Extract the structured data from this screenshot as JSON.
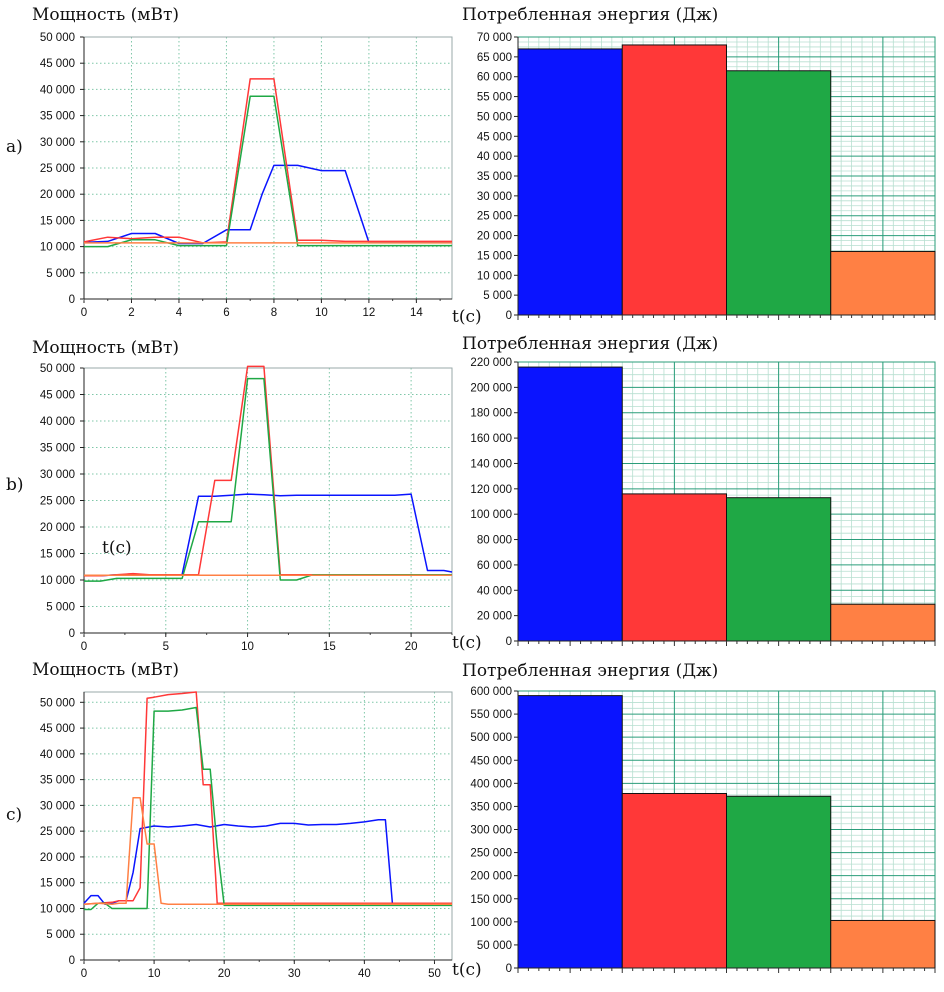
{
  "colors": {
    "blue": "#0a14ff",
    "red": "#ff3838",
    "green": "#1fa845",
    "orange": "#ff8044",
    "grid": "#2a9d7a"
  },
  "chart_data": [
    {
      "id": "a-power",
      "row_label": "a)",
      "type": "line",
      "title": "Мощность (мВт)",
      "xlabel": "",
      "xlim": [
        0,
        15.5
      ],
      "ylim": [
        0,
        50000
      ],
      "xticks": [
        0,
        2,
        4,
        6,
        8,
        10,
        12,
        14
      ],
      "xtick_labels": [
        "0",
        "2",
        "4",
        "6",
        "8",
        "10",
        "12",
        "14"
      ],
      "yticks": [
        0,
        5000,
        10000,
        15000,
        20000,
        25000,
        30000,
        35000,
        40000,
        45000,
        50000
      ],
      "ytick_labels": [
        "0",
        "5 000",
        "10 000",
        "15 000",
        "20 000",
        "25 000",
        "30 000",
        "35 000",
        "40 000",
        "45 000",
        "50 000"
      ],
      "grid": true,
      "series": [
        {
          "color": "blue",
          "x": [
            0,
            1,
            2,
            3,
            4,
            5,
            6,
            7,
            7.5,
            8,
            9,
            10,
            11,
            12,
            13,
            14,
            15.5
          ],
          "y": [
            10800,
            11000,
            12500,
            12500,
            10600,
            10600,
            13200,
            13200,
            20000,
            25500,
            25500,
            24500,
            24500,
            10800,
            10800,
            10800,
            10800
          ]
        },
        {
          "color": "red",
          "x": [
            0,
            1,
            2,
            3,
            4,
            5,
            6,
            7,
            8,
            9,
            10,
            11,
            12,
            13,
            14,
            15.5
          ],
          "y": [
            10900,
            11800,
            11500,
            11800,
            11800,
            10700,
            10900,
            42000,
            42000,
            11200,
            11200,
            11000,
            11000,
            11000,
            11000,
            11000
          ]
        },
        {
          "color": "green",
          "x": [
            0,
            1,
            2,
            3,
            4,
            5,
            6,
            7,
            8,
            9,
            10,
            11,
            12,
            13,
            14,
            15.5
          ],
          "y": [
            10000,
            10000,
            11300,
            11300,
            10200,
            10200,
            10200,
            38700,
            38700,
            10200,
            10200,
            10200,
            10200,
            10200,
            10200,
            10200
          ]
        },
        {
          "color": "orange",
          "x": [
            0,
            15.5
          ],
          "y": [
            10700,
            10700
          ]
        }
      ]
    },
    {
      "id": "a-energy",
      "type": "bar",
      "title": "Потребленная энергия (Дж)",
      "xlabel": "t(c)",
      "ylim": [
        0,
        70000
      ],
      "yticks": [
        0,
        5000,
        10000,
        15000,
        20000,
        25000,
        30000,
        35000,
        40000,
        45000,
        50000,
        55000,
        60000,
        65000,
        70000
      ],
      "ytick_labels": [
        "0",
        "5 000",
        "10 000",
        "15 000",
        "20 000",
        "25 000",
        "30 000",
        "35 000",
        "40 000",
        "45 000",
        "50 000",
        "55 000",
        "60 000",
        "65 000",
        "70 000"
      ],
      "grid": true,
      "bars": [
        {
          "color": "blue",
          "value": 67000
        },
        {
          "color": "red",
          "value": 68000
        },
        {
          "color": "green",
          "value": 61500
        },
        {
          "color": "orange",
          "value": 16000
        }
      ]
    },
    {
      "id": "b-power",
      "row_label": "b)",
      "type": "line",
      "title": "Мощность (мВт)",
      "xlabel": "t(c)",
      "xlim": [
        0,
        22.5
      ],
      "ylim": [
        0,
        50000
      ],
      "xticks": [
        0,
        5,
        10,
        15,
        20
      ],
      "xtick_labels": [
        "0",
        "5",
        "10",
        "15",
        "20"
      ],
      "yticks": [
        0,
        5000,
        10000,
        15000,
        20000,
        25000,
        30000,
        35000,
        40000,
        45000,
        50000
      ],
      "ytick_labels": [
        "0",
        "5 000",
        "10 000",
        "15 000",
        "20 000",
        "25 000",
        "30 000",
        "35 000",
        "40 000",
        "45 000",
        "50 000"
      ],
      "grid": true,
      "series": [
        {
          "color": "blue",
          "x": [
            0,
            1,
            2,
            3,
            4,
            5,
            6,
            7,
            8,
            9,
            10,
            11,
            12,
            13,
            14,
            15,
            16,
            17,
            18,
            19,
            20,
            21,
            22,
            22.5
          ],
          "y": [
            10800,
            10800,
            11000,
            11000,
            11000,
            11000,
            11000,
            25800,
            25800,
            26000,
            26200,
            26100,
            25900,
            26000,
            26000,
            26000,
            26000,
            26000,
            26000,
            26000,
            26200,
            11800,
            11800,
            11500
          ]
        },
        {
          "color": "red",
          "x": [
            0,
            1,
            2,
            3,
            4,
            5,
            6,
            7,
            8,
            9,
            10,
            11,
            12,
            13,
            14,
            15,
            16,
            17,
            18,
            19,
            20,
            21,
            22,
            22.5
          ],
          "y": [
            10800,
            10800,
            11000,
            11200,
            11000,
            11000,
            11000,
            11000,
            28800,
            28800,
            50300,
            50300,
            11000,
            11000,
            11000,
            11000,
            11000,
            11000,
            11000,
            11000,
            11000,
            11000,
            11000,
            11000
          ]
        },
        {
          "color": "green",
          "x": [
            0,
            1,
            2,
            3,
            4,
            5,
            6,
            7,
            8,
            9,
            10,
            11,
            12,
            13,
            14,
            15,
            16,
            17,
            18,
            19,
            20,
            21,
            22,
            22.5
          ],
          "y": [
            9800,
            9800,
            10300,
            10300,
            10300,
            10300,
            10300,
            21000,
            21000,
            21000,
            48000,
            48000,
            10000,
            10000,
            11000,
            11000,
            11000,
            11000,
            11000,
            11000,
            11000,
            11000,
            11000,
            11000
          ]
        },
        {
          "color": "orange",
          "x": [
            0,
            22.5
          ],
          "y": [
            10900,
            10900
          ]
        }
      ]
    },
    {
      "id": "b-energy",
      "type": "bar",
      "title": "Потребленная энергия (Дж)",
      "xlabel": "t(c)",
      "ylim": [
        0,
        220000
      ],
      "yticks": [
        0,
        20000,
        40000,
        60000,
        80000,
        100000,
        120000,
        140000,
        160000,
        180000,
        200000,
        220000
      ],
      "ytick_labels": [
        "0",
        "20 000",
        "40 000",
        "60 000",
        "80 000",
        "100 000",
        "120 000",
        "140 000",
        "160 000",
        "180 000",
        "200 000",
        "220 000"
      ],
      "grid": true,
      "bars": [
        {
          "color": "blue",
          "value": 216000
        },
        {
          "color": "red",
          "value": 116000
        },
        {
          "color": "green",
          "value": 113000
        },
        {
          "color": "orange",
          "value": 29000
        }
      ]
    },
    {
      "id": "c-power",
      "row_label": "c)",
      "type": "line",
      "title": "Мощность (мВт)",
      "xlabel": "",
      "xlim": [
        0,
        52.5
      ],
      "ylim": [
        0,
        52000
      ],
      "xticks": [
        0,
        10,
        20,
        30,
        40,
        50
      ],
      "xtick_labels": [
        "0",
        "10",
        "20",
        "30",
        "40",
        "50"
      ],
      "yticks": [
        0,
        5000,
        10000,
        15000,
        20000,
        25000,
        30000,
        35000,
        40000,
        45000,
        50000
      ],
      "ytick_labels": [
        "0",
        "5 000",
        "10 000",
        "15 000",
        "20 000",
        "25 000",
        "30 000",
        "35 000",
        "40 000",
        "45 000",
        "50 000"
      ],
      "grid": true,
      "series": [
        {
          "color": "blue",
          "x": [
            0,
            1,
            2,
            3,
            4,
            5,
            6,
            7,
            8,
            10,
            12,
            14,
            16,
            18,
            20,
            22,
            24,
            26,
            28,
            30,
            32,
            34,
            36,
            38,
            40,
            42,
            43,
            44,
            46,
            48,
            50,
            52.5
          ],
          "y": [
            11000,
            12500,
            12500,
            10800,
            11000,
            11500,
            11500,
            17000,
            25500,
            26000,
            25800,
            26000,
            26300,
            25800,
            26300,
            26000,
            25800,
            26000,
            26500,
            26500,
            26200,
            26300,
            26300,
            26500,
            26800,
            27200,
            27200,
            11000,
            11000,
            11000,
            11000,
            11000
          ]
        },
        {
          "color": "red",
          "x": [
            0,
            2,
            4,
            5,
            6,
            7,
            8,
            9,
            10,
            12,
            14,
            16,
            17,
            18,
            19,
            20,
            22,
            30,
            40,
            50,
            52.5
          ],
          "y": [
            10800,
            11000,
            11200,
            11500,
            11500,
            11500,
            14000,
            50800,
            51000,
            51500,
            51700,
            52000,
            34000,
            34000,
            11000,
            11000,
            11000,
            11000,
            11000,
            11000,
            11000
          ]
        },
        {
          "color": "green",
          "x": [
            0,
            1,
            2,
            3,
            4,
            5,
            6,
            7,
            8,
            9,
            10,
            12,
            14,
            16,
            17,
            18,
            19,
            20,
            22,
            30,
            40,
            50,
            52.5
          ],
          "y": [
            9800,
            9800,
            11000,
            11000,
            10000,
            10000,
            10000,
            10000,
            10000,
            10000,
            48300,
            48300,
            48500,
            49000,
            37000,
            37000,
            22000,
            10600,
            10600,
            10600,
            10600,
            10600,
            10600
          ]
        },
        {
          "color": "orange",
          "x": [
            0,
            2,
            4,
            5,
            6,
            7,
            8,
            9,
            10,
            11,
            12,
            20,
            30,
            40,
            50,
            52.5
          ],
          "y": [
            10800,
            11000,
            10800,
            11000,
            11000,
            31500,
            31500,
            22500,
            22500,
            11000,
            10800,
            10800,
            10800,
            10800,
            10800,
            10800
          ]
        }
      ]
    },
    {
      "id": "c-energy",
      "type": "bar",
      "title": "Потребленная энергия (Дж)",
      "xlabel": "t(c)",
      "ylim": [
        0,
        600000
      ],
      "yticks": [
        0,
        50000,
        100000,
        150000,
        200000,
        250000,
        300000,
        350000,
        400000,
        450000,
        500000,
        550000,
        600000
      ],
      "ytick_labels": [
        "0",
        "50 000",
        "100 000",
        "150 000",
        "200 000",
        "250 000",
        "300 000",
        "350 000",
        "400 000",
        "450 000",
        "500 000",
        "550 000",
        "600 000"
      ],
      "grid": true,
      "bars": [
        {
          "color": "blue",
          "value": 590000
        },
        {
          "color": "red",
          "value": 378000
        },
        {
          "color": "green",
          "value": 372000
        },
        {
          "color": "orange",
          "value": 103000
        }
      ]
    }
  ]
}
